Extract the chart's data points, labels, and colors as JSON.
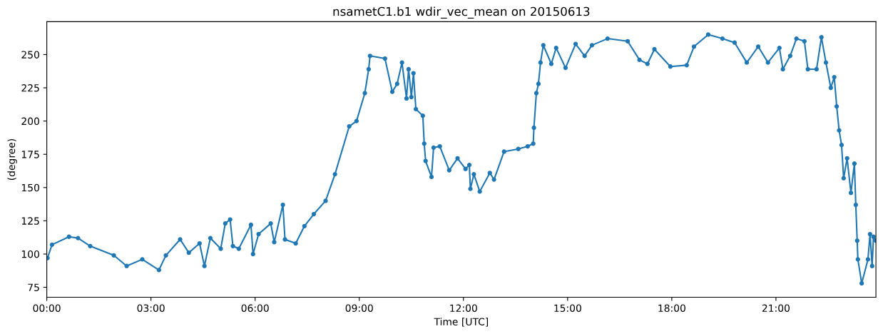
{
  "chart_data": {
    "type": "line",
    "title": "nsametC1.b1 wdir_vec_mean on 20150613",
    "xlabel": "Time [UTC]",
    "ylabel": "(degree)",
    "x": [
      0.02,
      0.15,
      0.64,
      0.9,
      1.25,
      1.93,
      2.3,
      2.75,
      3.23,
      3.43,
      3.84,
      4.09,
      4.4,
      4.54,
      4.71,
      5.01,
      5.14,
      5.28,
      5.36,
      5.53,
      5.88,
      5.94,
      6.1,
      6.45,
      6.55,
      6.8,
      6.86,
      7.17,
      7.42,
      7.69,
      8.03,
      8.3,
      8.71,
      8.92,
      9.16,
      9.27,
      9.31,
      9.74,
      9.95,
      10.09,
      10.23,
      10.36,
      10.42,
      10.5,
      10.56,
      10.63,
      10.83,
      10.87,
      10.91,
      11.08,
      11.14,
      11.32,
      11.59,
      11.83,
      12.06,
      12.17,
      12.2,
      12.3,
      12.47,
      12.76,
      12.88,
      13.17,
      13.58,
      13.85,
      14.01,
      14.03,
      14.1,
      14.16,
      14.22,
      14.3,
      14.53,
      14.67,
      14.94,
      15.23,
      15.49,
      15.7,
      16.15,
      16.73,
      17.07,
      17.3,
      17.5,
      17.96,
      18.43,
      18.64,
      19.05,
      19.46,
      19.81,
      20.16,
      20.49,
      20.77,
      21.1,
      21.2,
      21.41,
      21.59,
      21.82,
      21.92,
      22.17,
      22.31,
      22.44,
      22.58,
      22.68,
      22.75,
      22.82,
      22.89,
      22.95,
      23.05,
      23.16,
      23.26,
      23.3,
      23.34,
      23.36,
      23.47,
      23.65,
      23.71,
      23.77,
      23.81,
      23.88
    ],
    "series": [
      {
        "color": "#1f77b4",
        "values": [
          97,
          107,
          113,
          112,
          106,
          99,
          91,
          96,
          88,
          99,
          111,
          101,
          108,
          91,
          112,
          104,
          123,
          126,
          106,
          104,
          122,
          100,
          115,
          123,
          109,
          137,
          111,
          108,
          121,
          130,
          140,
          160,
          196,
          200,
          221,
          239,
          249,
          247,
          222,
          228,
          244,
          217,
          239,
          218,
          236,
          209,
          204,
          183,
          170,
          158,
          180,
          181,
          163,
          172,
          164,
          167,
          149,
          160,
          147,
          161,
          156,
          177,
          179,
          181,
          183,
          195,
          221,
          228,
          244,
          257,
          243,
          255,
          240,
          258,
          249,
          257,
          262,
          260,
          246,
          243,
          254,
          241,
          242,
          256,
          265,
          262,
          259,
          244,
          256,
          244,
          255,
          239,
          249,
          262,
          260,
          239,
          239,
          263,
          244,
          225,
          233,
          211,
          193,
          182,
          157,
          172,
          146,
          168,
          137,
          110,
          96,
          78,
          96,
          115,
          91,
          113,
          110
        ]
      }
    ],
    "xlim": [
      0,
      23.88
    ],
    "xticks": [
      {
        "value": 0,
        "label": "00:00"
      },
      {
        "value": 3,
        "label": "03:00"
      },
      {
        "value": 6,
        "label": "06:00"
      },
      {
        "value": 9,
        "label": "09:00"
      },
      {
        "value": 12,
        "label": "12:00"
      },
      {
        "value": 15,
        "label": "15:00"
      },
      {
        "value": 18,
        "label": "18:00"
      },
      {
        "value": 21,
        "label": "21:00"
      }
    ],
    "ylim": [
      67.5,
      274.7
    ],
    "yticks": [
      75,
      100,
      125,
      150,
      175,
      200,
      225,
      250
    ],
    "marker": "circle",
    "line_style": "solid"
  }
}
